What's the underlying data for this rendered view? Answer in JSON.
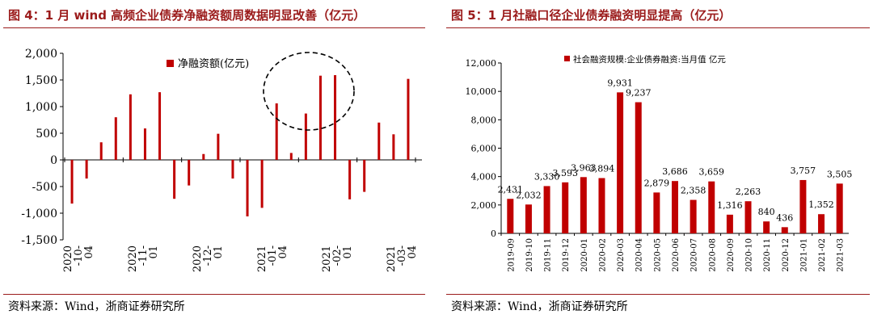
{
  "left": {
    "title": "图 4：1 月 wind 高频企业债券净融资额周数据明显改善（亿元）",
    "source": "资料来源：Wind，浙商证券研究所",
    "chart_data": {
      "type": "bar",
      "legend": "净融资额(亿元)",
      "legend_position": "top-center",
      "ylim": [
        -1500,
        2000
      ],
      "yticks": [
        -1500,
        -1000,
        -500,
        0,
        500,
        1000,
        1500,
        2000
      ],
      "ytick_labels": [
        "-1,500",
        "-1,000",
        "-500",
        "0",
        "500",
        "1,000",
        "1,500",
        "2,000"
      ],
      "x_labels": [
        "2020\n-10-\n04",
        "2020\n-11-\n01",
        "2020\n-12-\n01",
        "2021\n-01-\n04",
        "2021\n-02-\n01",
        "2021\n-03-\n04"
      ],
      "values": [
        -820,
        -350,
        330,
        800,
        1230,
        590,
        1270,
        -730,
        -480,
        110,
        490,
        -350,
        -1060,
        -900,
        1060,
        130,
        870,
        1580,
        1590,
        -740,
        -600,
        700,
        480,
        1520
      ],
      "color": "#c00000",
      "annotation": "dashed circle highlighting January 2021"
    }
  },
  "right": {
    "title": "图 5：1 月社融口径企业债券融资明显提高（亿元）",
    "source": "资料来源：Wind，浙商证券研究所",
    "chart_data": {
      "type": "bar",
      "legend": "社会融资规模:企业债券融资:当月值 亿元",
      "legend_position": "top-left",
      "ylim": [
        0,
        12000
      ],
      "yticks": [
        0,
        2000,
        4000,
        6000,
        8000,
        10000,
        12000
      ],
      "ytick_labels": [
        "0",
        "2,000",
        "4,000",
        "6,000",
        "8,000",
        "10,000",
        "12,000"
      ],
      "categories": [
        "2019-09",
        "2019-10",
        "2019-11",
        "2019-12",
        "2020-01",
        "2020-02",
        "2020-03",
        "2020-04",
        "2020-05",
        "2020-06",
        "2020-07",
        "2020-08",
        "2020-09",
        "2020-10",
        "2020-11",
        "2020-12",
        "2021-01",
        "2021-02",
        "2021-03"
      ],
      "values": [
        2431,
        2032,
        3330,
        3593,
        3963,
        3894,
        9931,
        9237,
        2879,
        3686,
        2358,
        3659,
        1316,
        2263,
        840,
        436,
        3757,
        1352,
        3505
      ],
      "data_labels": [
        "2,431",
        "2,032",
        "3,330",
        "3,593",
        "3,963",
        "3,894",
        "9,931",
        "9,237",
        "2,879",
        "3,686",
        "2,358",
        "3,659",
        "1,316",
        "2,263",
        "840",
        "436",
        "3,757",
        "1,352",
        "3,505"
      ],
      "color": "#c00000"
    }
  }
}
